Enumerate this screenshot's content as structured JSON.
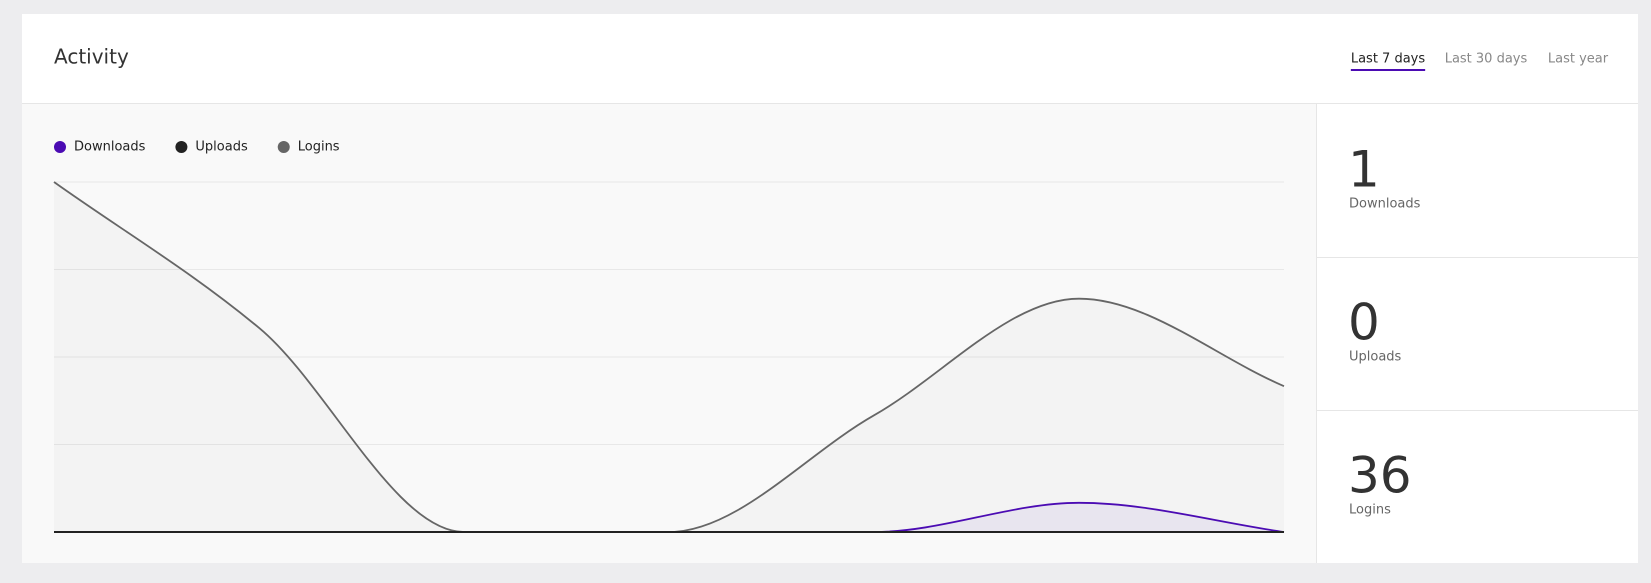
{
  "header": {
    "title": "Activity"
  },
  "tabs": [
    "Last 7 days",
    "Last 30 days",
    "Last year"
  ],
  "active_tab": 0,
  "chart_data": {
    "type": "line",
    "categories": [
      null,
      null,
      null,
      null,
      null,
      null,
      null
    ],
    "series": [
      {
        "name": "Downloads",
        "color": "#4b0bb3",
        "values": [
          0,
          0,
          0,
          0,
          0,
          1,
          0
        ]
      },
      {
        "name": "Uploads",
        "color": "#222222",
        "values": [
          0,
          0,
          0,
          0,
          0,
          0,
          0
        ]
      },
      {
        "name": "Logins",
        "color": "#666666",
        "values": [
          12,
          7,
          0,
          0,
          4,
          8,
          5
        ]
      }
    ],
    "ylim": [
      0,
      12
    ],
    "yticks": [
      0,
      3,
      6,
      9,
      12
    ],
    "grid": true
  },
  "stats": [
    {
      "value": 1,
      "label": "Downloads"
    },
    {
      "value": 0,
      "label": "Uploads"
    },
    {
      "value": 36,
      "label": "Logins"
    }
  ]
}
